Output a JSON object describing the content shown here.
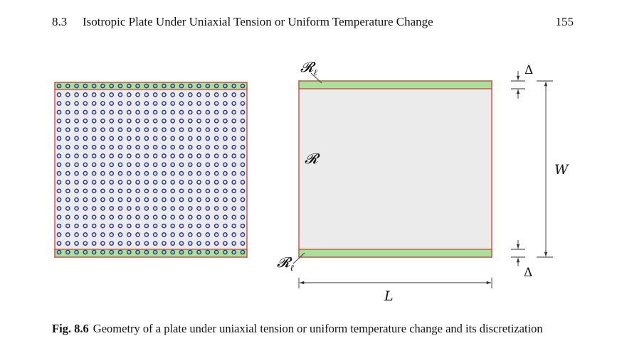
{
  "running_head": {
    "section_number": "8.3",
    "section_title": "Isotropic Plate Under Uniaxial Tension or Uniform Temperature Change",
    "page_number": "155"
  },
  "figure": {
    "discretization": {
      "rows": 20,
      "columns": 22
    },
    "labels": {
      "region_top": "𝓡",
      "region_top_sub": "ℓ",
      "region_main": "𝓡",
      "region_bottom": "𝓡",
      "region_bottom_sub": "ℓ",
      "delta_top": "Δ",
      "delta_bottom": "Δ",
      "width": "W",
      "length": "L"
    },
    "colors": {
      "outline": "#e0362c",
      "plate_fill": "#ebebeb",
      "strip_fill": "#a6e39a",
      "node_fill": "#233a97",
      "dimension_line": "#333333"
    }
  },
  "caption": {
    "label": "Fig. 8.6",
    "text": "Geometry of a plate under uniaxial tension or uniform temperature change and its discretization"
  }
}
